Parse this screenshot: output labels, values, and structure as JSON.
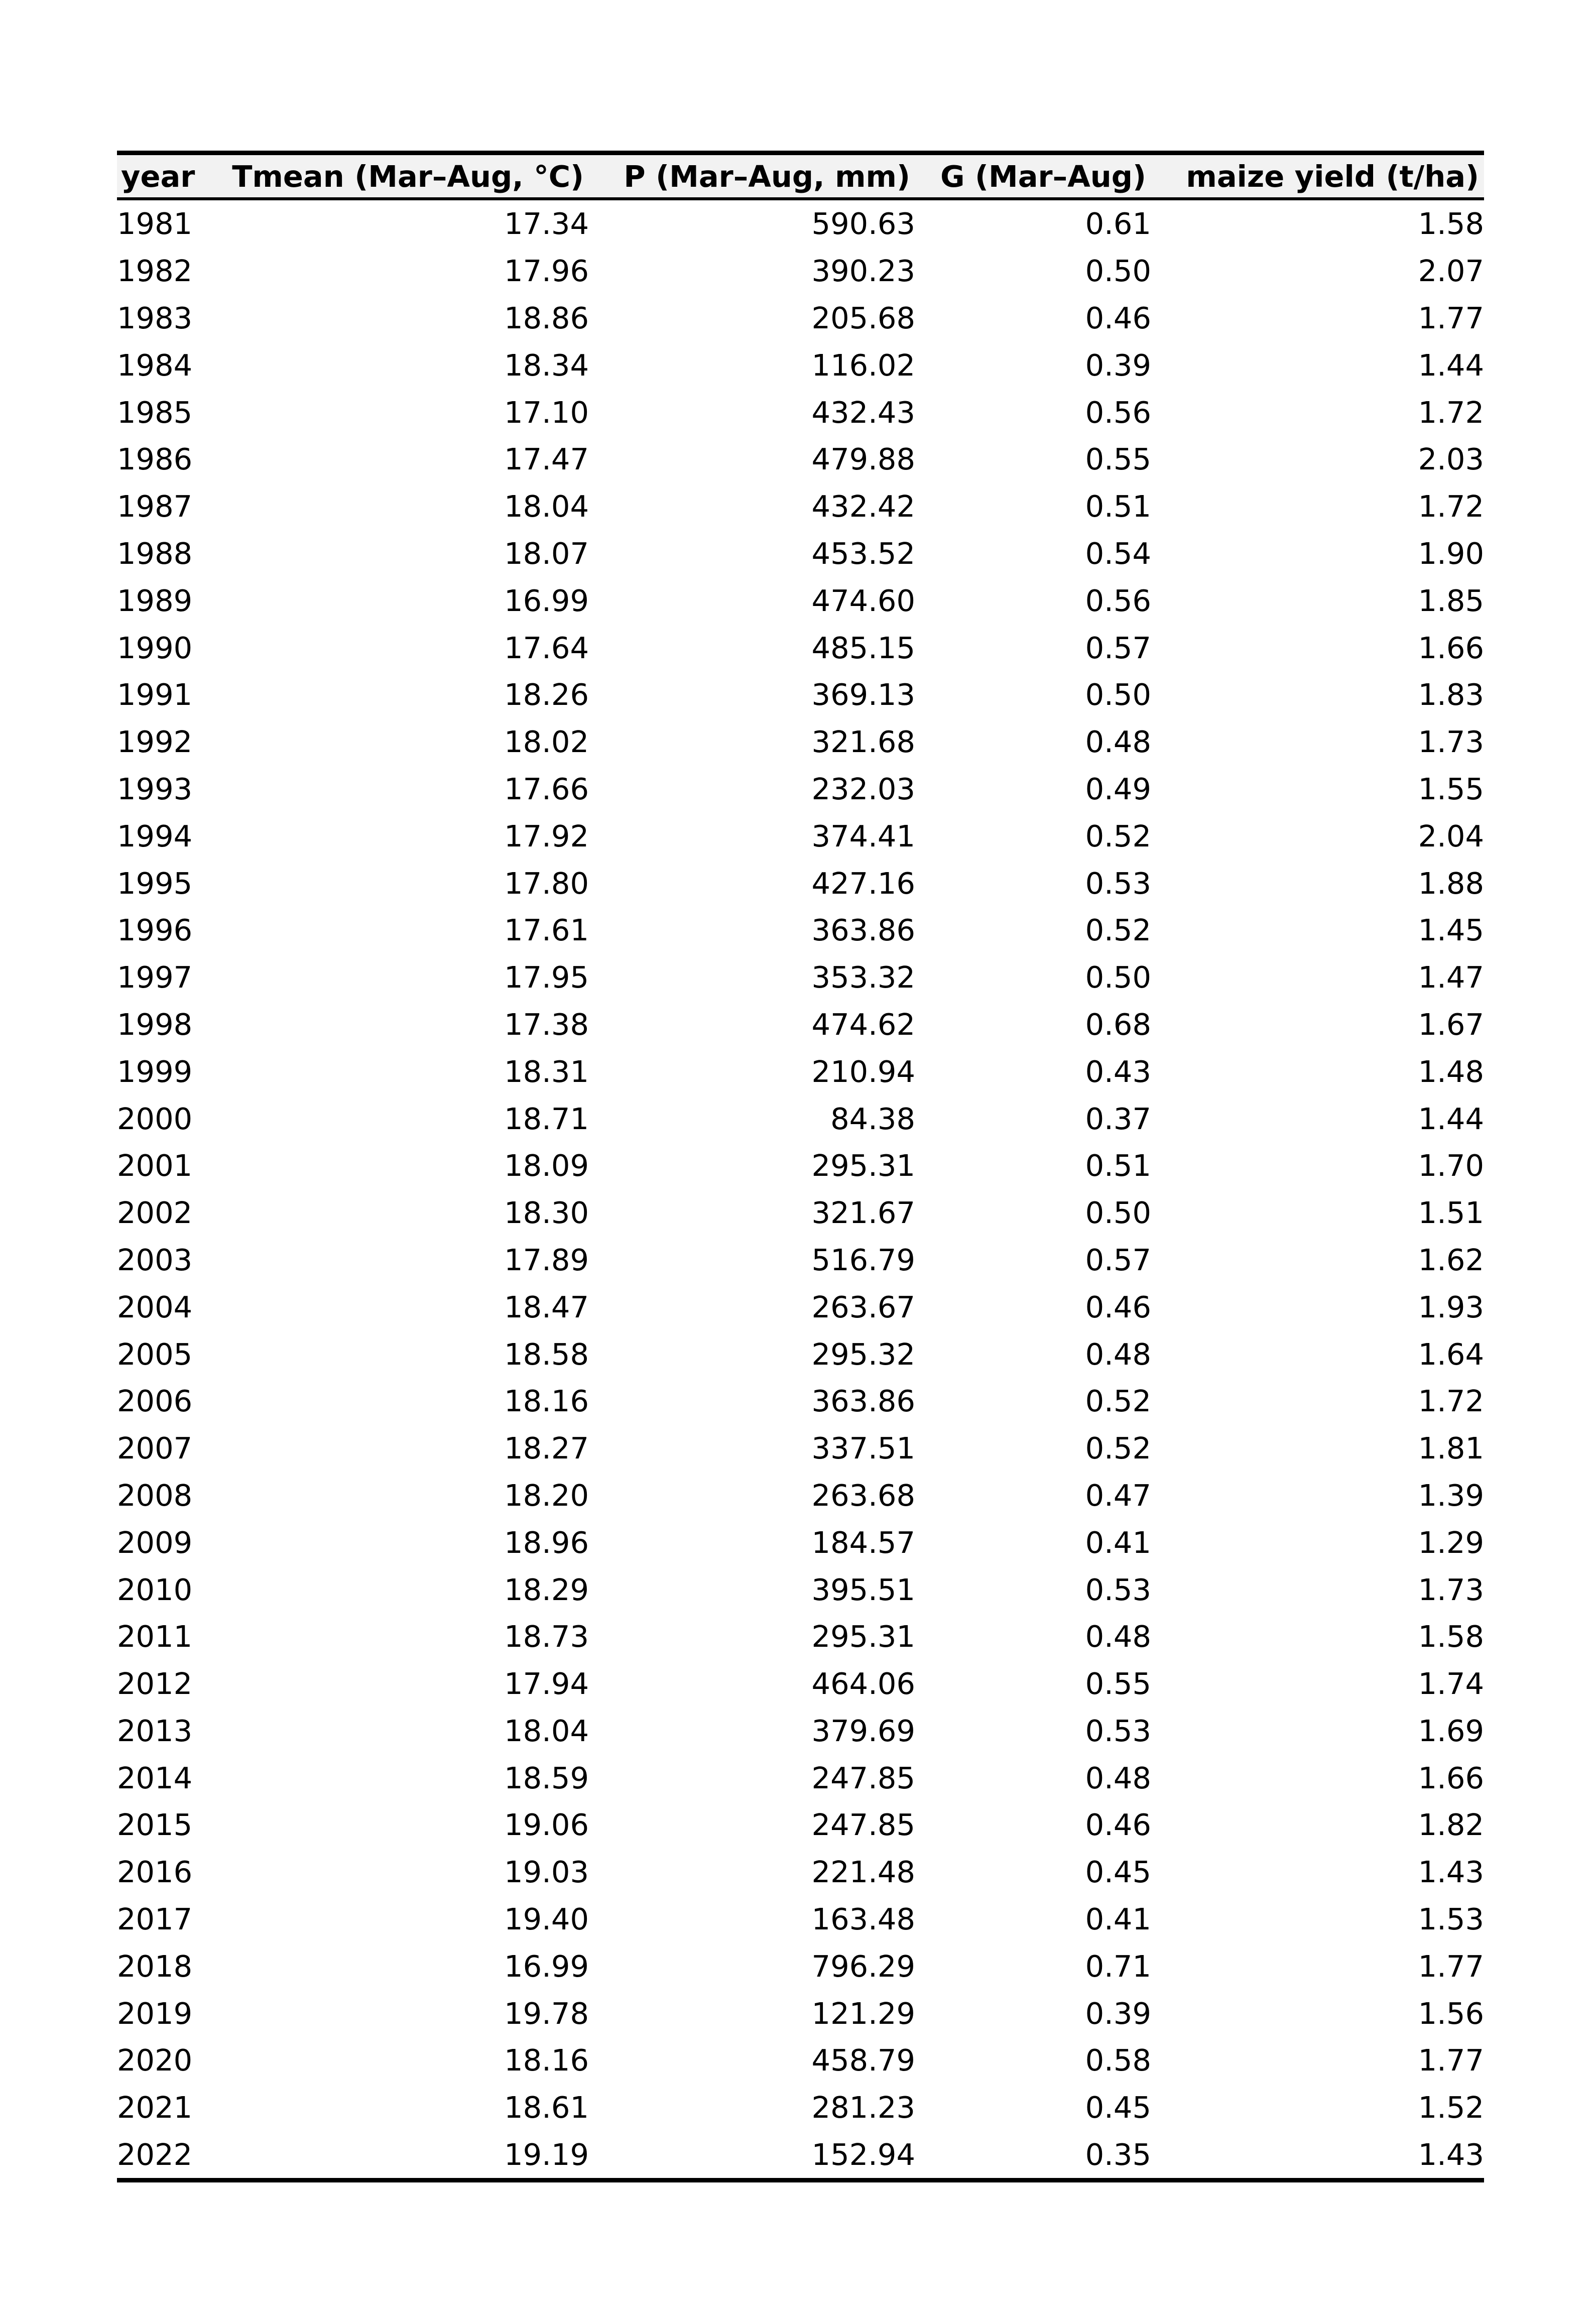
{
  "table": {
    "columns": [
      "year",
      "Tmean (Mar–Aug, °C)",
      "P (Mar–Aug, mm)",
      "G (Mar–Aug)",
      "maize yield (t/ha)"
    ],
    "rows": [
      [
        "1981",
        "17.34",
        "590.63",
        "0.61",
        "1.58"
      ],
      [
        "1982",
        "17.96",
        "390.23",
        "0.50",
        "2.07"
      ],
      [
        "1983",
        "18.86",
        "205.68",
        "0.46",
        "1.77"
      ],
      [
        "1984",
        "18.34",
        "116.02",
        "0.39",
        "1.44"
      ],
      [
        "1985",
        "17.10",
        "432.43",
        "0.56",
        "1.72"
      ],
      [
        "1986",
        "17.47",
        "479.88",
        "0.55",
        "2.03"
      ],
      [
        "1987",
        "18.04",
        "432.42",
        "0.51",
        "1.72"
      ],
      [
        "1988",
        "18.07",
        "453.52",
        "0.54",
        "1.90"
      ],
      [
        "1989",
        "16.99",
        "474.60",
        "0.56",
        "1.85"
      ],
      [
        "1990",
        "17.64",
        "485.15",
        "0.57",
        "1.66"
      ],
      [
        "1991",
        "18.26",
        "369.13",
        "0.50",
        "1.83"
      ],
      [
        "1992",
        "18.02",
        "321.68",
        "0.48",
        "1.73"
      ],
      [
        "1993",
        "17.66",
        "232.03",
        "0.49",
        "1.55"
      ],
      [
        "1994",
        "17.92",
        "374.41",
        "0.52",
        "2.04"
      ],
      [
        "1995",
        "17.80",
        "427.16",
        "0.53",
        "1.88"
      ],
      [
        "1996",
        "17.61",
        "363.86",
        "0.52",
        "1.45"
      ],
      [
        "1997",
        "17.95",
        "353.32",
        "0.50",
        "1.47"
      ],
      [
        "1998",
        "17.38",
        "474.62",
        "0.68",
        "1.67"
      ],
      [
        "1999",
        "18.31",
        "210.94",
        "0.43",
        "1.48"
      ],
      [
        "2000",
        "18.71",
        "84.38",
        "0.37",
        "1.44"
      ],
      [
        "2001",
        "18.09",
        "295.31",
        "0.51",
        "1.70"
      ],
      [
        "2002",
        "18.30",
        "321.67",
        "0.50",
        "1.51"
      ],
      [
        "2003",
        "17.89",
        "516.79",
        "0.57",
        "1.62"
      ],
      [
        "2004",
        "18.47",
        "263.67",
        "0.46",
        "1.93"
      ],
      [
        "2005",
        "18.58",
        "295.32",
        "0.48",
        "1.64"
      ],
      [
        "2006",
        "18.16",
        "363.86",
        "0.52",
        "1.72"
      ],
      [
        "2007",
        "18.27",
        "337.51",
        "0.52",
        "1.81"
      ],
      [
        "2008",
        "18.20",
        "263.68",
        "0.47",
        "1.39"
      ],
      [
        "2009",
        "18.96",
        "184.57",
        "0.41",
        "1.29"
      ],
      [
        "2010",
        "18.29",
        "395.51",
        "0.53",
        "1.73"
      ],
      [
        "2011",
        "18.73",
        "295.31",
        "0.48",
        "1.58"
      ],
      [
        "2012",
        "17.94",
        "464.06",
        "0.55",
        "1.74"
      ],
      [
        "2013",
        "18.04",
        "379.69",
        "0.53",
        "1.69"
      ],
      [
        "2014",
        "18.59",
        "247.85",
        "0.48",
        "1.66"
      ],
      [
        "2015",
        "19.06",
        "247.85",
        "0.46",
        "1.82"
      ],
      [
        "2016",
        "19.03",
        "221.48",
        "0.45",
        "1.43"
      ],
      [
        "2017",
        "19.40",
        "163.48",
        "0.41",
        "1.53"
      ],
      [
        "2018",
        "16.99",
        "796.29",
        "0.71",
        "1.77"
      ],
      [
        "2019",
        "19.78",
        "121.29",
        "0.39",
        "1.56"
      ],
      [
        "2020",
        "18.16",
        "458.79",
        "0.58",
        "1.77"
      ],
      [
        "2021",
        "18.61",
        "281.23",
        "0.45",
        "1.52"
      ],
      [
        "2022",
        "19.19",
        "152.94",
        "0.35",
        "1.43"
      ]
    ]
  }
}
